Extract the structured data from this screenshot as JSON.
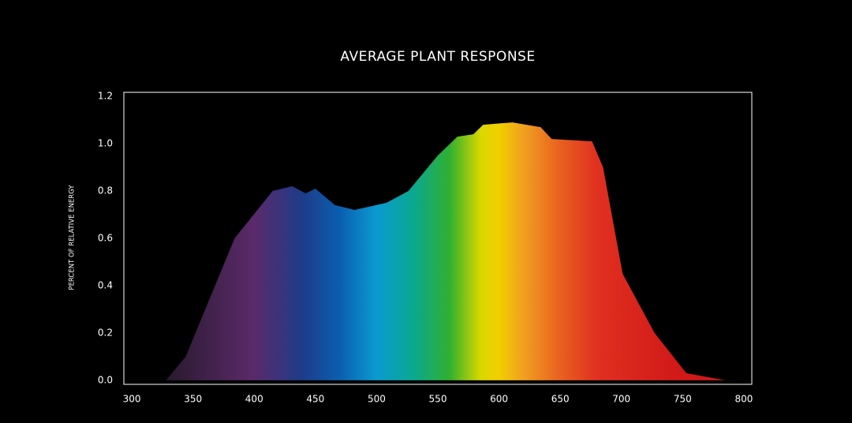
{
  "chart_data": {
    "type": "area",
    "title": "AVERAGE  PLANT RESPONSE",
    "y_label": "PERCENT OF RELATIVE ENERGY",
    "x": [
      328,
      344,
      384,
      415,
      431,
      442,
      450,
      466,
      482,
      508,
      526,
      550,
      566,
      579,
      587,
      611,
      634,
      643,
      676,
      685,
      701,
      727,
      753,
      785
    ],
    "values": [
      0,
      0.1,
      0.6,
      0.8,
      0.82,
      0.79,
      0.81,
      0.74,
      0.72,
      0.75,
      0.8,
      0.95,
      1.03,
      1.04,
      1.08,
      1.09,
      1.07,
      1.02,
      1.01,
      0.9,
      0.45,
      0.2,
      0.03,
      0
    ],
    "xlim": [
      293.5,
      806.5
    ],
    "xticks": [
      300,
      350,
      400,
      450,
      500,
      550,
      600,
      650,
      700,
      750,
      800
    ],
    "ylim": [
      -0.017,
      1.217
    ],
    "yticks": [
      {
        "value": 0,
        "label": "0.0"
      },
      0.2,
      0.4,
      0.6,
      0.8,
      {
        "value": 1,
        "label": "1.0"
      },
      1.2
    ],
    "grid": false
  }
}
